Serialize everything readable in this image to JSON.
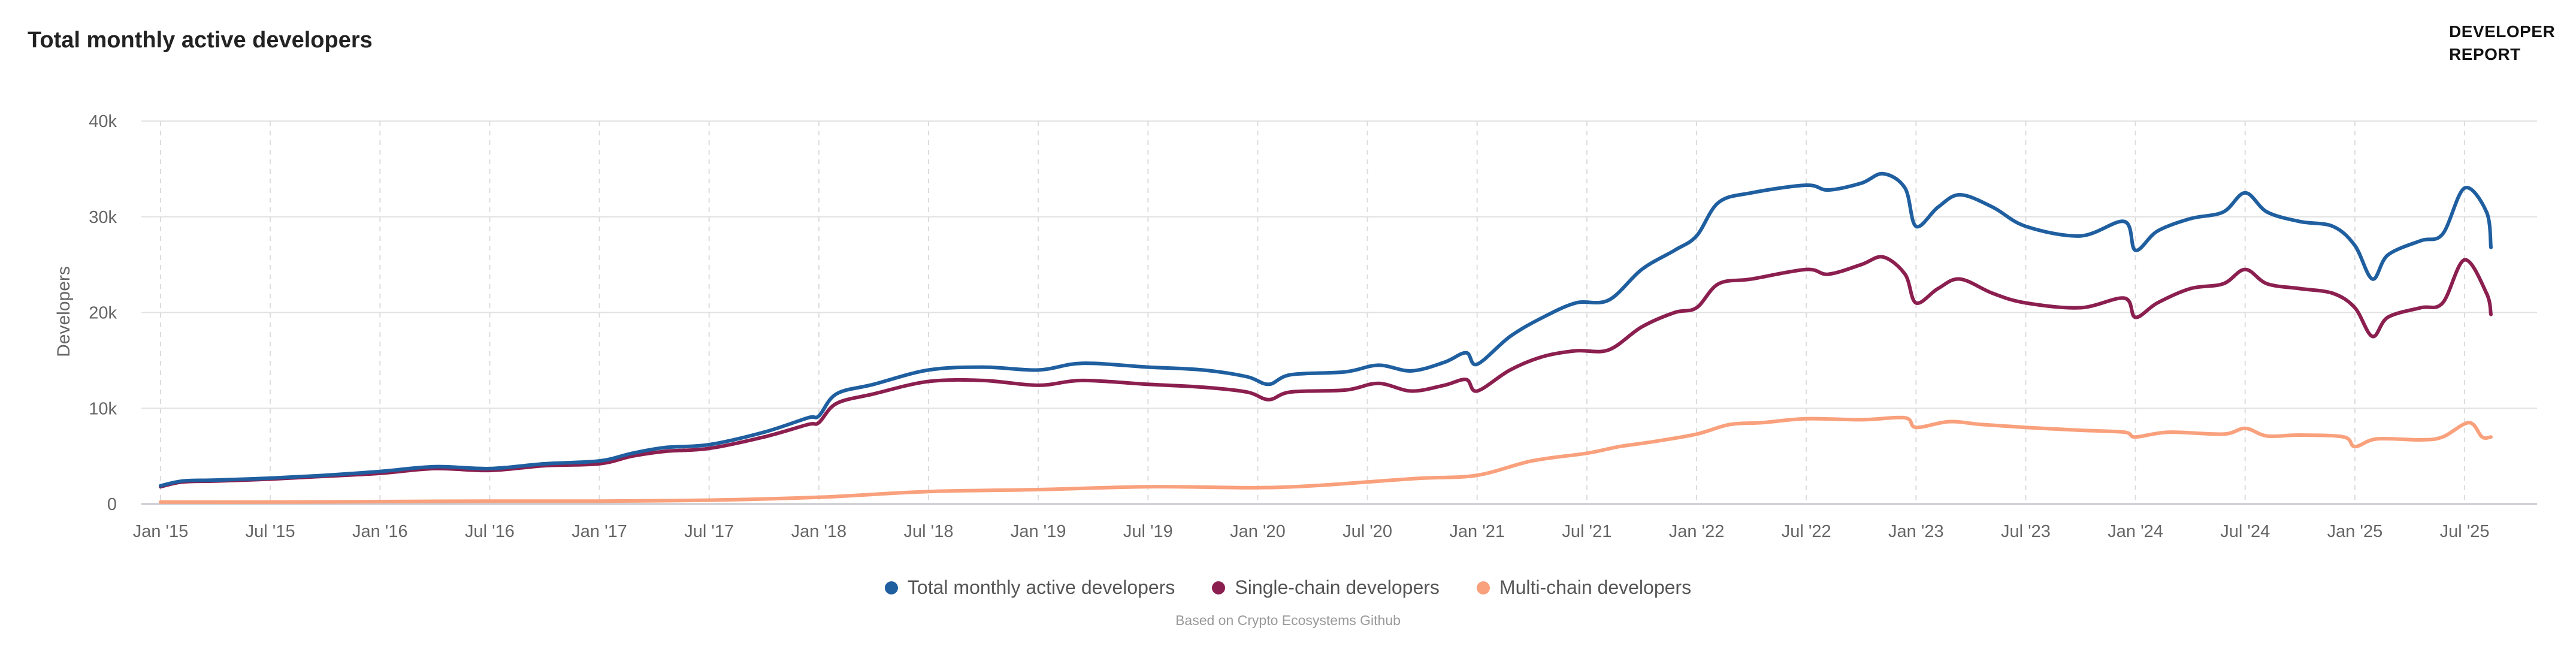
{
  "header": {
    "title": "Total monthly active developers",
    "brand_line1": "DEVELOPER",
    "brand_line2": "REPORT"
  },
  "source_note": "Based on Crypto Ecosystems Github",
  "chart_data": {
    "type": "line",
    "title": "Total monthly active developers",
    "ylabel": "Developers",
    "xlabel": "",
    "ylim": [
      0,
      40000
    ],
    "yticks": [
      0,
      10000,
      20000,
      30000,
      40000
    ],
    "ytick_labels": [
      "0",
      "10k",
      "20k",
      "30k",
      "40k"
    ],
    "xlim": [
      2015.0,
      2025.62
    ],
    "xticks": [
      2015.0,
      2015.5,
      2016.0,
      2016.5,
      2017.0,
      2017.5,
      2018.0,
      2018.5,
      2019.0,
      2019.5,
      2020.0,
      2020.5,
      2021.0,
      2021.5,
      2022.0,
      2022.5,
      2023.0,
      2023.5,
      2024.0,
      2024.5,
      2025.0,
      2025.5
    ],
    "xtick_labels": [
      "Jan '15",
      "Jul '15",
      "Jan '16",
      "Jul '16",
      "Jan '17",
      "Jul '17",
      "Jan '18",
      "Jul '18",
      "Jan '19",
      "Jul '19",
      "Jan '20",
      "Jul '20",
      "Jan '21",
      "Jul '21",
      "Jan '22",
      "Jul '22",
      "Jan '23",
      "Jul '23",
      "Jan '24",
      "Jul '24",
      "Jan '25",
      "Jul '25"
    ],
    "grid": true,
    "legend_position": "bottom-center",
    "series": [
      {
        "name": "Total monthly active developers",
        "color": "#1f5fa0",
        "points": [
          [
            2015.0,
            1900
          ],
          [
            2015.1,
            2400
          ],
          [
            2015.25,
            2500
          ],
          [
            2015.5,
            2700
          ],
          [
            2015.75,
            3000
          ],
          [
            2016.0,
            3400
          ],
          [
            2016.25,
            3900
          ],
          [
            2016.5,
            3700
          ],
          [
            2016.75,
            4200
          ],
          [
            2017.0,
            4500
          ],
          [
            2017.15,
            5300
          ],
          [
            2017.3,
            5900
          ],
          [
            2017.5,
            6200
          ],
          [
            2017.75,
            7500
          ],
          [
            2017.95,
            9000
          ],
          [
            2018.0,
            9200
          ],
          [
            2018.08,
            11500
          ],
          [
            2018.25,
            12500
          ],
          [
            2018.5,
            14000
          ],
          [
            2018.75,
            14300
          ],
          [
            2019.0,
            14000
          ],
          [
            2019.2,
            14700
          ],
          [
            2019.5,
            14300
          ],
          [
            2019.75,
            14000
          ],
          [
            2019.95,
            13300
          ],
          [
            2020.05,
            12500
          ],
          [
            2020.15,
            13500
          ],
          [
            2020.4,
            13800
          ],
          [
            2020.55,
            14500
          ],
          [
            2020.7,
            13900
          ],
          [
            2020.85,
            14800
          ],
          [
            2020.95,
            15800
          ],
          [
            2021.0,
            14600
          ],
          [
            2021.15,
            17500
          ],
          [
            2021.3,
            19500
          ],
          [
            2021.45,
            21000
          ],
          [
            2021.6,
            21300
          ],
          [
            2021.75,
            24500
          ],
          [
            2021.9,
            26500
          ],
          [
            2022.0,
            28000
          ],
          [
            2022.1,
            31500
          ],
          [
            2022.25,
            32500
          ],
          [
            2022.5,
            33300
          ],
          [
            2022.6,
            32800
          ],
          [
            2022.75,
            33500
          ],
          [
            2022.85,
            34500
          ],
          [
            2022.95,
            33000
          ],
          [
            2023.0,
            29000
          ],
          [
            2023.1,
            31000
          ],
          [
            2023.2,
            32300
          ],
          [
            2023.35,
            31000
          ],
          [
            2023.5,
            29000
          ],
          [
            2023.75,
            28000
          ],
          [
            2023.95,
            29500
          ],
          [
            2024.0,
            26500
          ],
          [
            2024.1,
            28500
          ],
          [
            2024.25,
            29800
          ],
          [
            2024.4,
            30500
          ],
          [
            2024.5,
            32500
          ],
          [
            2024.6,
            30500
          ],
          [
            2024.75,
            29500
          ],
          [
            2024.9,
            29000
          ],
          [
            2025.0,
            27000
          ],
          [
            2025.08,
            23500
          ],
          [
            2025.15,
            26000
          ],
          [
            2025.3,
            27500
          ],
          [
            2025.4,
            28200
          ],
          [
            2025.5,
            33000
          ],
          [
            2025.6,
            30500
          ],
          [
            2025.62,
            26800
          ]
        ]
      },
      {
        "name": "Single-chain developers",
        "color": "#8b1f4f",
        "points": [
          [
            2015.0,
            1800
          ],
          [
            2015.1,
            2300
          ],
          [
            2015.25,
            2400
          ],
          [
            2015.5,
            2600
          ],
          [
            2015.75,
            2900
          ],
          [
            2016.0,
            3200
          ],
          [
            2016.25,
            3700
          ],
          [
            2016.5,
            3500
          ],
          [
            2016.75,
            4000
          ],
          [
            2017.0,
            4200
          ],
          [
            2017.15,
            5000
          ],
          [
            2017.3,
            5500
          ],
          [
            2017.5,
            5800
          ],
          [
            2017.75,
            7000
          ],
          [
            2017.95,
            8300
          ],
          [
            2018.0,
            8500
          ],
          [
            2018.08,
            10500
          ],
          [
            2018.25,
            11500
          ],
          [
            2018.5,
            12800
          ],
          [
            2018.75,
            12900
          ],
          [
            2019.0,
            12400
          ],
          [
            2019.2,
            12900
          ],
          [
            2019.5,
            12500
          ],
          [
            2019.75,
            12200
          ],
          [
            2019.95,
            11700
          ],
          [
            2020.05,
            10900
          ],
          [
            2020.15,
            11700
          ],
          [
            2020.4,
            11900
          ],
          [
            2020.55,
            12600
          ],
          [
            2020.7,
            11800
          ],
          [
            2020.85,
            12400
          ],
          [
            2020.95,
            13000
          ],
          [
            2021.0,
            11800
          ],
          [
            2021.15,
            14000
          ],
          [
            2021.3,
            15400
          ],
          [
            2021.45,
            16000
          ],
          [
            2021.6,
            16100
          ],
          [
            2021.75,
            18500
          ],
          [
            2021.9,
            20000
          ],
          [
            2022.0,
            20500
          ],
          [
            2022.1,
            23000
          ],
          [
            2022.25,
            23500
          ],
          [
            2022.5,
            24500
          ],
          [
            2022.6,
            24000
          ],
          [
            2022.75,
            25000
          ],
          [
            2022.85,
            25800
          ],
          [
            2022.95,
            24000
          ],
          [
            2023.0,
            21000
          ],
          [
            2023.1,
            22500
          ],
          [
            2023.2,
            23500
          ],
          [
            2023.35,
            22000
          ],
          [
            2023.5,
            21000
          ],
          [
            2023.75,
            20500
          ],
          [
            2023.95,
            21500
          ],
          [
            2024.0,
            19500
          ],
          [
            2024.1,
            21000
          ],
          [
            2024.25,
            22500
          ],
          [
            2024.4,
            23000
          ],
          [
            2024.5,
            24500
          ],
          [
            2024.6,
            23000
          ],
          [
            2024.75,
            22500
          ],
          [
            2024.9,
            22000
          ],
          [
            2025.0,
            20500
          ],
          [
            2025.08,
            17500
          ],
          [
            2025.15,
            19500
          ],
          [
            2025.3,
            20500
          ],
          [
            2025.4,
            21000
          ],
          [
            2025.5,
            25500
          ],
          [
            2025.6,
            22000
          ],
          [
            2025.62,
            19800
          ]
        ]
      },
      {
        "name": "Multi-chain developers",
        "color": "#f9a07c",
        "points": [
          [
            2015.0,
            200
          ],
          [
            2015.5,
            200
          ],
          [
            2016.0,
            250
          ],
          [
            2016.5,
            300
          ],
          [
            2017.0,
            300
          ],
          [
            2017.5,
            400
          ],
          [
            2018.0,
            700
          ],
          [
            2018.5,
            1300
          ],
          [
            2019.0,
            1500
          ],
          [
            2019.5,
            1800
          ],
          [
            2020.0,
            1700
          ],
          [
            2020.25,
            1900
          ],
          [
            2020.5,
            2300
          ],
          [
            2020.75,
            2700
          ],
          [
            2021.0,
            3000
          ],
          [
            2021.25,
            4500
          ],
          [
            2021.5,
            5300
          ],
          [
            2021.65,
            6000
          ],
          [
            2021.8,
            6500
          ],
          [
            2022.0,
            7300
          ],
          [
            2022.15,
            8300
          ],
          [
            2022.3,
            8500
          ],
          [
            2022.5,
            8900
          ],
          [
            2022.75,
            8800
          ],
          [
            2022.95,
            9000
          ],
          [
            2023.0,
            8000
          ],
          [
            2023.15,
            8600
          ],
          [
            2023.3,
            8300
          ],
          [
            2023.5,
            8000
          ],
          [
            2023.75,
            7700
          ],
          [
            2023.95,
            7500
          ],
          [
            2024.0,
            7000
          ],
          [
            2024.15,
            7500
          ],
          [
            2024.4,
            7300
          ],
          [
            2024.5,
            7900
          ],
          [
            2024.6,
            7100
          ],
          [
            2024.75,
            7200
          ],
          [
            2024.95,
            7000
          ],
          [
            2025.0,
            6000
          ],
          [
            2025.1,
            6800
          ],
          [
            2025.3,
            6700
          ],
          [
            2025.4,
            7000
          ],
          [
            2025.52,
            8500
          ],
          [
            2025.58,
            7000
          ],
          [
            2025.62,
            7000
          ]
        ]
      }
    ]
  }
}
